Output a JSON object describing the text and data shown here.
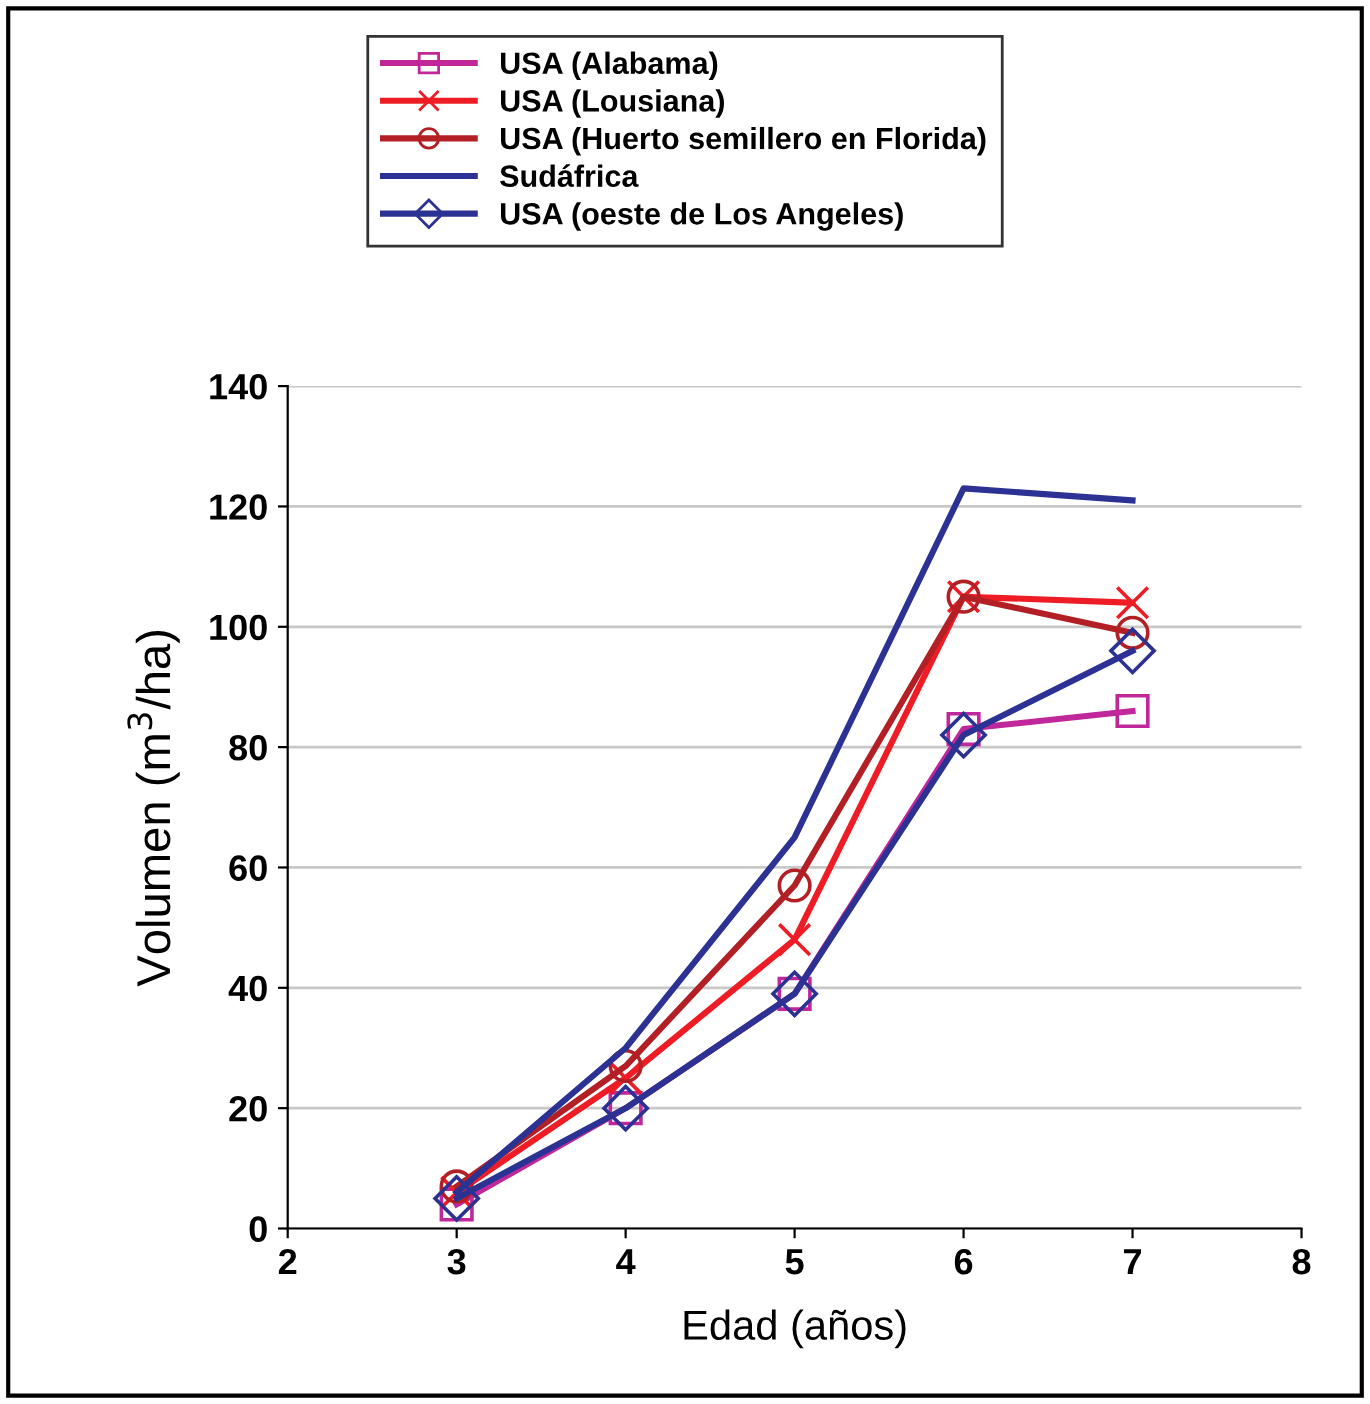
{
  "chart_data": {
    "type": "line",
    "xlabel": "Edad (años)",
    "ylabel": "Volumen (m$^{3}$/ha)",
    "x": [
      3,
      4,
      5,
      6,
      7
    ],
    "series": [
      {
        "name": "USA (Alabama)",
        "color": "#c0279b",
        "marker": "square",
        "values": [
          4,
          20,
          39,
          83,
          86
        ]
      },
      {
        "name": "USA (Lousiana)",
        "color": "#ee1c25",
        "marker": "cross",
        "values": [
          6,
          25,
          48,
          105,
          104
        ]
      },
      {
        "name": "USA (Huerto semillero en Florida)",
        "color": "#b22025",
        "marker": "circle",
        "values": [
          7,
          27,
          57,
          105,
          99
        ]
      },
      {
        "name": "Sudáfrica",
        "color": "#2b3293",
        "marker": "none",
        "values": [
          6,
          30,
          65,
          123,
          121
        ]
      },
      {
        "name": "USA (oeste de Los Angeles)",
        "color": "#2b3293",
        "marker": "diamond",
        "values": [
          5,
          20,
          39,
          82,
          96
        ]
      }
    ],
    "xlim": [
      2,
      8
    ],
    "xticks": [
      2,
      3,
      4,
      5,
      6,
      7,
      8
    ],
    "ylim": [
      0,
      140
    ],
    "yticks": [
      0,
      20,
      40,
      60,
      80,
      100,
      120,
      140
    ],
    "grid": "y",
    "legend": "top",
    "line_style": "solid"
  }
}
